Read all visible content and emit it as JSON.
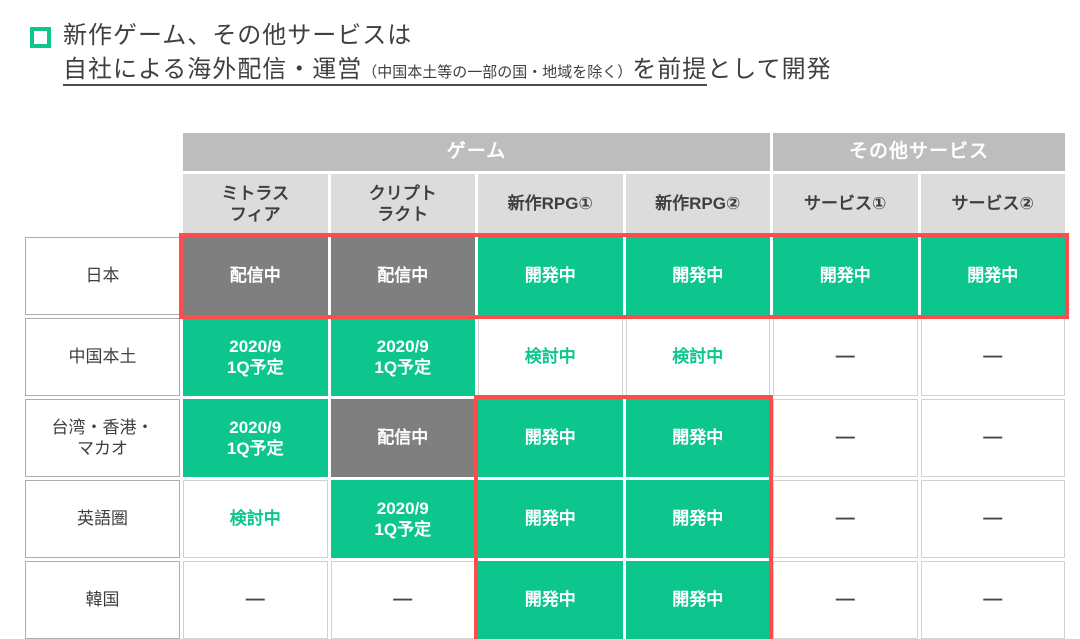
{
  "colors": {
    "accent_green": "#0dc68d",
    "cell_gray": "#7f7f7f",
    "group_header_bg": "#bdbdbd",
    "sub_header_bg": "#dcdcdc",
    "highlight_red": "#ff4d4d",
    "text_dark": "#3f3f3f"
  },
  "title": {
    "bullet_icon": "green-outline-square",
    "line1": "新作ゲーム、その他サービスは",
    "line2": {
      "underlined_main": "自社による海外配信・運営",
      "underlined_note": "（中国本土等の一部の国・地域を除く）",
      "underlined_tail": "を前提",
      "plain_tail": "として開発"
    }
  },
  "table": {
    "group_headers": [
      {
        "label": "ゲーム",
        "span": 4
      },
      {
        "label": "その他サービス",
        "span": 2
      }
    ],
    "column_headers": [
      "ミトラス\nフィア",
      "クリプト\nラクト",
      "新作RPG①",
      "新作RPG②",
      "サービス①",
      "サービス②"
    ],
    "rows": [
      {
        "label": "日本",
        "cells": [
          {
            "text": "配信中",
            "style": "gray-fill"
          },
          {
            "text": "配信中",
            "style": "gray-fill"
          },
          {
            "text": "開発中",
            "style": "green-fill"
          },
          {
            "text": "開発中",
            "style": "green-fill"
          },
          {
            "text": "開発中",
            "style": "green-fill"
          },
          {
            "text": "開発中",
            "style": "green-fill"
          }
        ]
      },
      {
        "label": "中国本土",
        "cells": [
          {
            "text": "2020/9\n1Q予定",
            "style": "green-fill"
          },
          {
            "text": "2020/9\n1Q予定",
            "style": "green-fill"
          },
          {
            "text": "検討中",
            "style": "green-text"
          },
          {
            "text": "検討中",
            "style": "green-text"
          },
          {
            "text": "—",
            "style": "dash"
          },
          {
            "text": "—",
            "style": "dash"
          }
        ]
      },
      {
        "label": "台湾・香港・\nマカオ",
        "cells": [
          {
            "text": "2020/9\n1Q予定",
            "style": "green-fill"
          },
          {
            "text": "配信中",
            "style": "gray-fill"
          },
          {
            "text": "開発中",
            "style": "green-fill"
          },
          {
            "text": "開発中",
            "style": "green-fill"
          },
          {
            "text": "—",
            "style": "dash"
          },
          {
            "text": "—",
            "style": "dash"
          }
        ]
      },
      {
        "label": "英語圏",
        "cells": [
          {
            "text": "検討中",
            "style": "green-text"
          },
          {
            "text": "2020/9\n1Q予定",
            "style": "green-fill"
          },
          {
            "text": "開発中",
            "style": "green-fill"
          },
          {
            "text": "開発中",
            "style": "green-fill"
          },
          {
            "text": "—",
            "style": "dash"
          },
          {
            "text": "—",
            "style": "dash"
          }
        ]
      },
      {
        "label": "韓国",
        "cells": [
          {
            "text": "—",
            "style": "dash"
          },
          {
            "text": "—",
            "style": "dash"
          },
          {
            "text": "開発中",
            "style": "green-fill"
          },
          {
            "text": "開発中",
            "style": "green-fill"
          },
          {
            "text": "—",
            "style": "dash"
          },
          {
            "text": "—",
            "style": "dash"
          }
        ]
      }
    ],
    "highlights": [
      {
        "area": "japan-row-all-columns"
      },
      {
        "area": "new-rpg1-rpg2-columns-taiwan-to-korea"
      }
    ]
  }
}
